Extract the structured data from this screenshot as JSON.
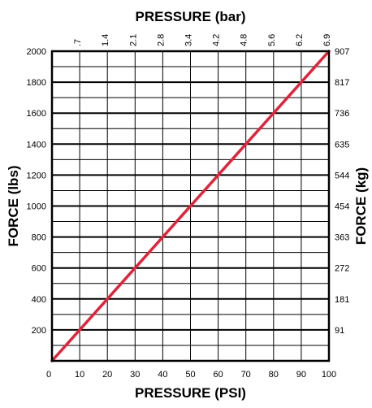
{
  "chart_data": {
    "type": "line",
    "title": "",
    "x_bottom": {
      "label": "PRESSURE (PSI)",
      "range": [
        0,
        100
      ],
      "ticks": [
        0,
        10,
        20,
        30,
        40,
        50,
        60,
        70,
        80,
        90,
        100
      ],
      "tick_labels": [
        "0",
        "10",
        "20",
        "30",
        "40",
        "50",
        "60",
        "70",
        "80",
        "90",
        "100"
      ]
    },
    "x_top": {
      "label": "PRESSURE (bar)",
      "tick_labels": [
        ".7",
        "1.4",
        "2.1",
        "2.8",
        "3.4",
        "4.2",
        "4.8",
        "5.6",
        "6.2",
        "6.9"
      ]
    },
    "y_left": {
      "label": "FORCE (lbs)",
      "range": [
        0,
        2000
      ],
      "ticks": [
        200,
        400,
        600,
        800,
        1000,
        1200,
        1400,
        1600,
        1800,
        2000
      ],
      "tick_labels": [
        "200",
        "400",
        "600",
        "800",
        "1000",
        "1200",
        "1400",
        "1600",
        "1800",
        "2000"
      ]
    },
    "y_right": {
      "label": "FORCE (kg)",
      "tick_labels": [
        "91",
        "181",
        "272",
        "363",
        "454",
        "544",
        "635",
        "736",
        "817",
        "907"
      ]
    },
    "grid": true,
    "grid_minor": true,
    "series": [
      {
        "color": "#e0243a",
        "x": [
          0,
          100
        ],
        "y": [
          0,
          2000
        ]
      }
    ]
  }
}
